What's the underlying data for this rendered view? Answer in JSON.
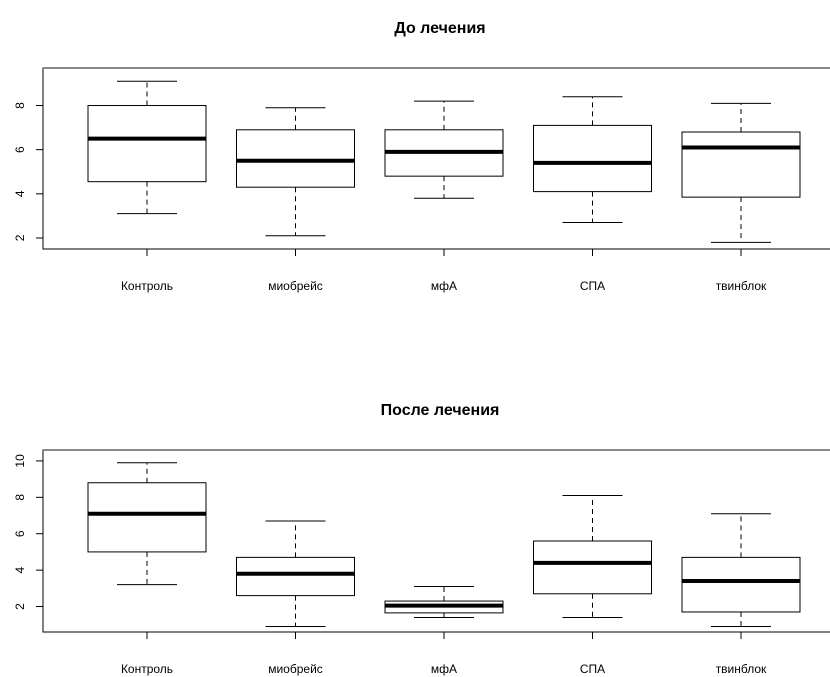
{
  "chart_data": [
    {
      "type": "boxplot",
      "title": "До лечения",
      "categories": [
        "Контроль",
        "миобрейс",
        "мфА",
        "СПА",
        "твинблок"
      ],
      "ylim": [
        1.5,
        9.7
      ],
      "yticks": [
        "2",
        "4",
        "6",
        "8"
      ],
      "boxes": [
        {
          "min": 3.1,
          "q1": 4.55,
          "median": 6.5,
          "q3": 8.0,
          "max": 9.1
        },
        {
          "min": 2.1,
          "q1": 4.3,
          "median": 5.5,
          "q3": 6.9,
          "max": 7.9
        },
        {
          "min": 3.8,
          "q1": 4.8,
          "median": 5.9,
          "q3": 6.9,
          "max": 8.2
        },
        {
          "min": 2.7,
          "q1": 4.1,
          "median": 5.4,
          "q3": 7.1,
          "max": 8.4
        },
        {
          "min": 1.8,
          "q1": 3.85,
          "median": 6.1,
          "q3": 6.8,
          "max": 8.1
        }
      ]
    },
    {
      "type": "boxplot",
      "title": "После лечения",
      "categories": [
        "Контроль",
        "миобрейс",
        "мфА",
        "СПА",
        "твинблок"
      ],
      "ylim": [
        0.6,
        10.6
      ],
      "yticks": [
        "2",
        "4",
        "6",
        "8",
        "10"
      ],
      "boxes": [
        {
          "min": 3.2,
          "q1": 5.0,
          "median": 7.1,
          "q3": 8.8,
          "max": 9.9
        },
        {
          "min": 0.9,
          "q1": 2.6,
          "median": 3.8,
          "q3": 4.7,
          "max": 6.7
        },
        {
          "min": 1.4,
          "q1": 1.65,
          "median": 2.05,
          "q3": 2.3,
          "max": 3.1
        },
        {
          "min": 1.4,
          "q1": 2.7,
          "median": 4.4,
          "q3": 5.6,
          "max": 8.1
        },
        {
          "min": 0.9,
          "q1": 1.7,
          "median": 3.4,
          "q3": 4.7,
          "max": 7.1
        }
      ]
    }
  ]
}
